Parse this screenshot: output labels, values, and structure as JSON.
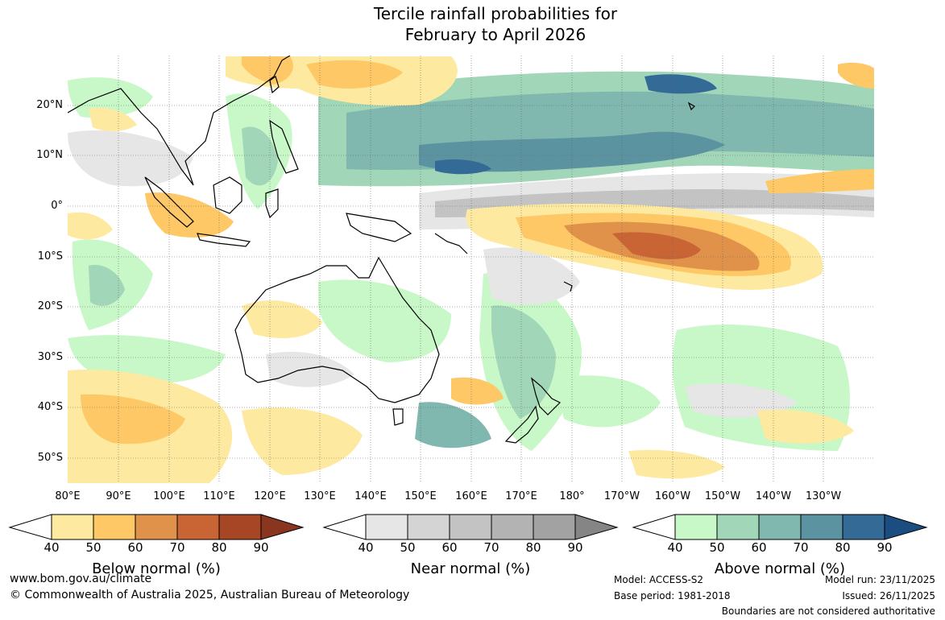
{
  "title": {
    "line1": "Tercile rainfall probabilities for",
    "line2": "February to April 2026"
  },
  "map": {
    "lat_ticks": [
      "20°N",
      "10°N",
      "0°",
      "10°S",
      "20°S",
      "30°S",
      "40°S",
      "50°S"
    ],
    "lon_ticks": [
      "80°E",
      "90°E",
      "100°E",
      "110°E",
      "120°E",
      "130°E",
      "140°E",
      "150°E",
      "160°E",
      "170°E",
      "180°",
      "170°W",
      "160°W",
      "150°W",
      "140°W",
      "130°W"
    ]
  },
  "colorbars": [
    {
      "title": "Below normal (%)",
      "labels": [
        "40",
        "50",
        "60",
        "70",
        "80",
        "90"
      ],
      "colors": [
        "#fdeaa0",
        "#fdc865",
        "#e0924a",
        "#c96535",
        "#a64625",
        "#8a3520"
      ]
    },
    {
      "title": "Near normal (%)",
      "labels": [
        "40",
        "50",
        "60",
        "70",
        "80",
        "90"
      ],
      "colors": [
        "#e6e6e6",
        "#d4d4d4",
        "#c3c3c3",
        "#b3b3b3",
        "#a2a2a2",
        "#858585"
      ]
    },
    {
      "title": "Above normal (%)",
      "labels": [
        "40",
        "50",
        "60",
        "70",
        "80",
        "90"
      ],
      "colors": [
        "#c8f7c8",
        "#a2d6b8",
        "#80b7ae",
        "#5b93a1",
        "#346a96",
        "#1c4d80"
      ]
    }
  ],
  "footer": {
    "website": "www.bom.gov.au/climate",
    "copyright": "© Commonwealth of Australia 2025, Australian Bureau of Meteorology",
    "model": "Model: ACCESS-S2",
    "base_period": "Base period: 1981-2018",
    "model_run": "Model run: 23/11/2025",
    "issued": "Issued: 26/11/2025",
    "disclaimer": "Boundaries are not considered authoritative"
  }
}
